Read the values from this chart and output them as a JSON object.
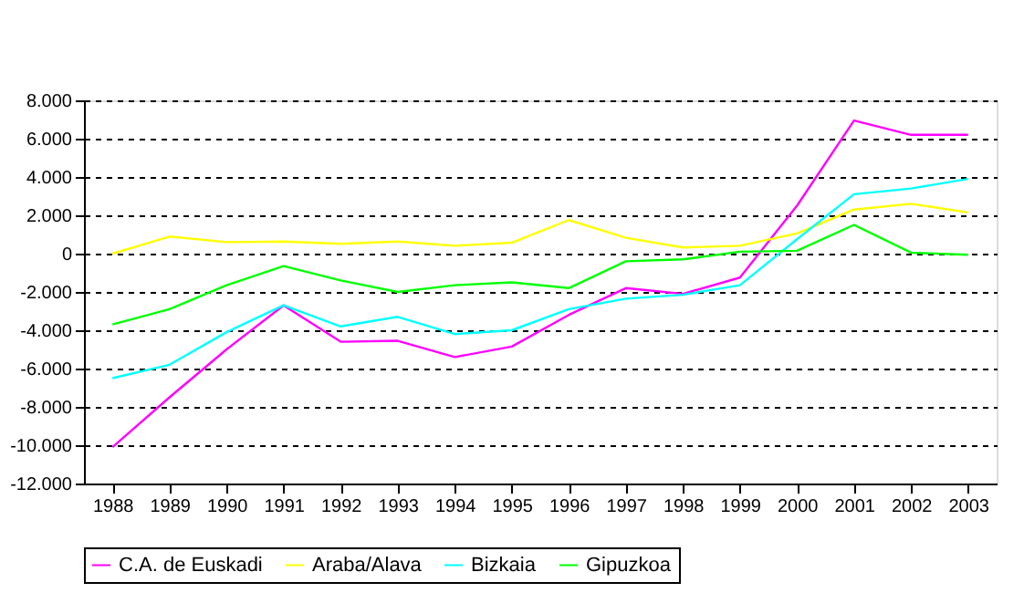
{
  "chart_data": {
    "type": "line",
    "categories": [
      "1988",
      "1989",
      "1990",
      "1991",
      "1992",
      "1993",
      "1994",
      "1995",
      "1996",
      "1997",
      "1998",
      "1999",
      "2000",
      "2001",
      "2002",
      "2003"
    ],
    "series": [
      {
        "name": "C.A. de Euskadi",
        "color": "#ff00ff",
        "values": [
          -10100,
          -7500,
          -5000,
          -2700,
          -4600,
          -4550,
          -5400,
          -4850,
          -3200,
          -1800,
          -2100,
          -1250,
          2500,
          6950,
          6200,
          6200
        ]
      },
      {
        "name": "Araba/Alava",
        "color": "#ffff00",
        "values": [
          0,
          890,
          600,
          630,
          510,
          630,
          410,
          570,
          1750,
          830,
          320,
          410,
          1050,
          2300,
          2600,
          2150
        ]
      },
      {
        "name": "Bizkaia",
        "color": "#00ffff",
        "values": [
          -6500,
          -5800,
          -4100,
          -2700,
          -3800,
          -3300,
          -4200,
          -4000,
          -2900,
          -2350,
          -2150,
          -1650,
          750,
          3100,
          3400,
          3900
        ]
      },
      {
        "name": "Gipuzkoa",
        "color": "#00ff00",
        "values": [
          -3700,
          -2900,
          -1650,
          -650,
          -1400,
          -2000,
          -1650,
          -1500,
          -1800,
          -400,
          -300,
          100,
          150,
          1500,
          50,
          -60
        ]
      }
    ],
    "ylim": [
      -12000,
      8000
    ],
    "yticks": [
      {
        "value": -12000,
        "label": "-12.000"
      },
      {
        "value": -10000,
        "label": "-10.000"
      },
      {
        "value": -8000,
        "label": "-8.000"
      },
      {
        "value": -6000,
        "label": "-6.000"
      },
      {
        "value": -4000,
        "label": "-4.000"
      },
      {
        "value": -2000,
        "label": "-2.000"
      },
      0,
      {
        "value": 2000,
        "label": "2.000"
      },
      {
        "value": 4000,
        "label": "4.000"
      },
      {
        "value": 6000,
        "label": "6.000"
      },
      {
        "value": 8000,
        "label": "8.000"
      }
    ],
    "grid": "y",
    "legend": "bottom",
    "marker": "none",
    "line_style": "solid"
  }
}
